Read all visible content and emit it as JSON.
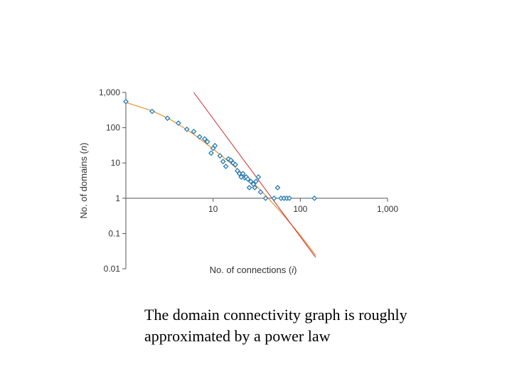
{
  "caption": {
    "line1": "The domain connectivity graph is roughly",
    "line2": "approximated by a power law"
  },
  "chart_data": {
    "type": "scatter",
    "x_scale": "log",
    "y_scale": "log",
    "xlabel_prefix": "No. of connections (",
    "xlabel_var": "i",
    "xlabel_suffix": ")",
    "ylabel_prefix": "No. of domains (",
    "ylabel_var": "n",
    "ylabel_suffix": ")",
    "xlim": [
      1,
      1000
    ],
    "ylim": [
      0.01,
      1000
    ],
    "x_ticks": [
      10,
      100,
      1000
    ],
    "x_tick_labels": [
      "10",
      "100",
      "1,000"
    ],
    "y_ticks": [
      1000,
      100,
      10,
      1,
      0.1,
      0.01
    ],
    "y_tick_labels": [
      "1,000",
      "100",
      "10",
      "1",
      "0.1",
      "0.01"
    ],
    "grid": false,
    "colors": {
      "points": "#2a7db5",
      "fit_curve": "#e8922e",
      "power_law": "#cc2a2a",
      "axis": "#555555"
    },
    "points": [
      {
        "x": 1,
        "y": 550
      },
      {
        "x": 2,
        "y": 290
      },
      {
        "x": 3,
        "y": 185
      },
      {
        "x": 4,
        "y": 135
      },
      {
        "x": 5,
        "y": 90
      },
      {
        "x": 6,
        "y": 78
      },
      {
        "x": 7,
        "y": 55
      },
      {
        "x": 8,
        "y": 48
      },
      {
        "x": 8.6,
        "y": 40
      },
      {
        "x": 10,
        "y": 26
      },
      {
        "x": 10.5,
        "y": 31
      },
      {
        "x": 9.5,
        "y": 19
      },
      {
        "x": 12,
        "y": 16
      },
      {
        "x": 13,
        "y": 11
      },
      {
        "x": 14,
        "y": 8
      },
      {
        "x": 15,
        "y": 13
      },
      {
        "x": 16,
        "y": 12
      },
      {
        "x": 17,
        "y": 10
      },
      {
        "x": 18,
        "y": 9
      },
      {
        "x": 19,
        "y": 6
      },
      {
        "x": 20,
        "y": 5
      },
      {
        "x": 21,
        "y": 4
      },
      {
        "x": 22,
        "y": 5
      },
      {
        "x": 23,
        "y": 3.8
      },
      {
        "x": 24,
        "y": 4
      },
      {
        "x": 25,
        "y": 3.5
      },
      {
        "x": 26,
        "y": 2
      },
      {
        "x": 27,
        "y": 3
      },
      {
        "x": 29,
        "y": 2.5
      },
      {
        "x": 30,
        "y": 2
      },
      {
        "x": 31,
        "y": 3
      },
      {
        "x": 33,
        "y": 4
      },
      {
        "x": 35,
        "y": 1.5
      },
      {
        "x": 40,
        "y": 1
      },
      {
        "x": 50,
        "y": 1
      },
      {
        "x": 55,
        "y": 2
      },
      {
        "x": 60,
        "y": 1
      },
      {
        "x": 65,
        "y": 1
      },
      {
        "x": 70,
        "y": 1
      },
      {
        "x": 75,
        "y": 1
      },
      {
        "x": 145,
        "y": 1
      }
    ],
    "fit_curve": [
      {
        "x": 1,
        "y": 520
      },
      {
        "x": 2,
        "y": 300
      },
      {
        "x": 3,
        "y": 190
      },
      {
        "x": 4,
        "y": 125
      },
      {
        "x": 6,
        "y": 65
      },
      {
        "x": 8,
        "y": 38
      },
      {
        "x": 10,
        "y": 25
      },
      {
        "x": 15,
        "y": 11
      },
      {
        "x": 20,
        "y": 6
      },
      {
        "x": 30,
        "y": 2.5
      },
      {
        "x": 40,
        "y": 1.2
      },
      {
        "x": 60,
        "y": 0.4
      },
      {
        "x": 100,
        "y": 0.09
      },
      {
        "x": 150,
        "y": 0.024
      }
    ],
    "power_law_line": [
      {
        "x": 6,
        "y": 1000
      },
      {
        "x": 150,
        "y": 0.021
      }
    ]
  }
}
